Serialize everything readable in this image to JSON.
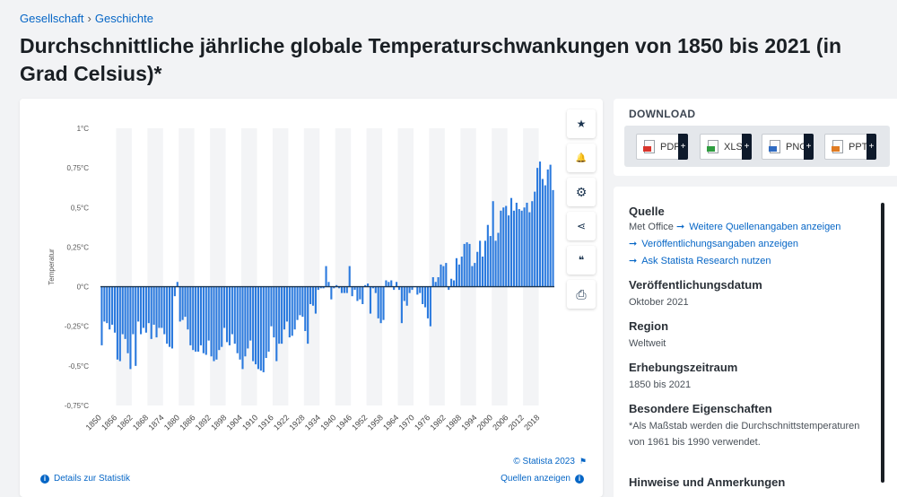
{
  "breadcrumb": {
    "item1": "Gesellschaft",
    "separator": "›",
    "item2": "Geschichte"
  },
  "page_title": "Durchschnittliche jährliche globale Temperaturschwankungen von 1850 bis 2021 (in Grad Celsius)*",
  "tools": {
    "star": "★",
    "bell": "🔔",
    "gear": "⚙",
    "share": "⋖",
    "quote": "❝",
    "print": "⎙"
  },
  "footer": {
    "details": "Details zur Statistik",
    "copyright": "© Statista 2023",
    "sources": "Quellen anzeigen"
  },
  "download": {
    "title": "DOWNLOAD",
    "pdf": "PDF",
    "xls": "XLS",
    "png": "PNG",
    "ppt": "PPT",
    "plus": "+"
  },
  "meta": {
    "source_title": "Quelle",
    "source_value": "Met Office",
    "more_sources": "Weitere Quellenangaben anzeigen",
    "publication_info": "Veröffentlichungsangaben anzeigen",
    "ask_research": "Ask Statista Research nutzen",
    "pubdate_title": "Veröffentlichungsdatum",
    "pubdate_value": "Oktober 2021",
    "region_title": "Region",
    "region_value": "Weltweit",
    "period_title": "Erhebungszeitraum",
    "period_value": "1850 bis 2021",
    "special_title": "Besondere Eigenschaften",
    "special_value": "*Als Maßstab werden die Durchschnittstemperaturen von 1961 bis 1990 verwendet.",
    "notes_title": "Hinweise und Anmerkungen"
  },
  "colors": {
    "bar": "#2b7ade",
    "accent": "#0666c6",
    "dark": "#0e1a2b"
  },
  "chart_data": {
    "type": "bar",
    "ylabel": "Temperatur",
    "ylim": [
      -0.75,
      1
    ],
    "yticks": [
      1,
      0.75,
      0.5,
      0.25,
      0,
      -0.25,
      -0.5,
      -0.75
    ],
    "ytick_labels": [
      "1°C",
      "0,75°C",
      "0,5°C",
      "0,25°C",
      "0°C",
      "-0,25°C",
      "-0,5°C",
      "-0,75°C"
    ],
    "xtick_labels": [
      "1850",
      "1856",
      "1862",
      "1868",
      "1874",
      "1880",
      "1886",
      "1892",
      "1898",
      "1904",
      "1910",
      "1916",
      "1922",
      "1928",
      "1934",
      "1940",
      "1946",
      "1952",
      "1958",
      "1964",
      "1970",
      "1976",
      "1982",
      "1988",
      "1994",
      "2000",
      "2006",
      "2012",
      "2018"
    ],
    "x_start": 1850,
    "x_end": 2021,
    "values": [
      -0.37,
      -0.22,
      -0.23,
      -0.27,
      -0.24,
      -0.29,
      -0.46,
      -0.47,
      -0.3,
      -0.33,
      -0.42,
      -0.52,
      -0.3,
      -0.5,
      -0.22,
      -0.3,
      -0.26,
      -0.29,
      -0.23,
      -0.33,
      -0.24,
      -0.32,
      -0.26,
      -0.26,
      -0.3,
      -0.36,
      -0.38,
      -0.39,
      -0.06,
      0.03,
      -0.22,
      -0.21,
      -0.19,
      -0.27,
      -0.37,
      -0.4,
      -0.41,
      -0.41,
      -0.37,
      -0.42,
      -0.43,
      -0.34,
      -0.44,
      -0.47,
      -0.46,
      -0.4,
      -0.38,
      -0.26,
      -0.35,
      -0.37,
      -0.3,
      -0.36,
      -0.42,
      -0.46,
      -0.52,
      -0.44,
      -0.39,
      -0.34,
      -0.47,
      -0.49,
      -0.52,
      -0.53,
      -0.54,
      -0.45,
      -0.41,
      -0.25,
      -0.32,
      -0.47,
      -0.36,
      -0.36,
      -0.27,
      -0.22,
      -0.32,
      -0.31,
      -0.27,
      -0.21,
      -0.18,
      -0.19,
      -0.28,
      -0.36,
      -0.11,
      -0.12,
      -0.17,
      -0.02,
      -0.01,
      -0.01,
      0.13,
      0.03,
      -0.08,
      -0.01,
      0.01,
      -0.01,
      -0.04,
      -0.04,
      -0.04,
      0.13,
      -0.06,
      -0.02,
      -0.09,
      -0.08,
      -0.11,
      0.01,
      0.02,
      -0.17,
      -0.01,
      -0.04,
      -0.2,
      -0.23,
      -0.21,
      0.04,
      0.03,
      0.04,
      -0.02,
      0.03,
      -0.02,
      -0.23,
      -0.09,
      -0.12,
      -0.04,
      -0.02,
      0.0,
      -0.05,
      -0.04,
      -0.11,
      -0.13,
      -0.2,
      -0.25,
      0.06,
      0.03,
      0.06,
      0.14,
      0.13,
      0.15,
      -0.02,
      0.05,
      0.04,
      0.18,
      0.14,
      0.19,
      0.27,
      0.28,
      0.27,
      0.13,
      0.15,
      0.22,
      0.29,
      0.19,
      0.29,
      0.39,
      0.32,
      0.54,
      0.29,
      0.34,
      0.48,
      0.5,
      0.51,
      0.45,
      0.56,
      0.48,
      0.53,
      0.49,
      0.48,
      0.5,
      0.53,
      0.47,
      0.54,
      0.6,
      0.75,
      0.79,
      0.68,
      0.64,
      0.74,
      0.77,
      0.61
    ]
  }
}
